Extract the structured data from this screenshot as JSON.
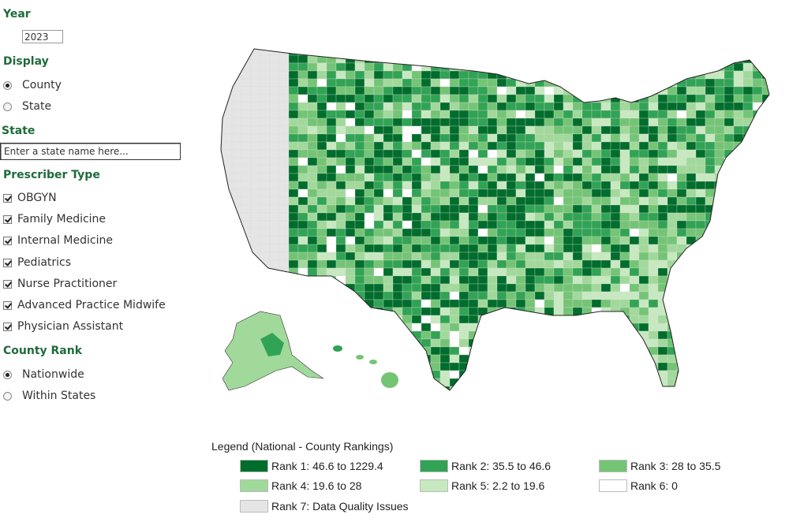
{
  "sidebar": {
    "year": {
      "title": "Year",
      "value": "2023"
    },
    "display": {
      "title": "Display",
      "options": [
        {
          "label": "County",
          "selected": true
        },
        {
          "label": "State",
          "selected": false
        }
      ]
    },
    "state": {
      "title": "State",
      "placeholder": "Enter a state name here..."
    },
    "prescriber": {
      "title": "Prescriber Type",
      "options": [
        {
          "label": "OBGYN",
          "checked": true
        },
        {
          "label": "Family Medicine",
          "checked": true
        },
        {
          "label": "Internal Medicine",
          "checked": true
        },
        {
          "label": "Pediatrics",
          "checked": true
        },
        {
          "label": "Nurse Practitioner",
          "checked": true
        },
        {
          "label": "Advanced Practice Midwife",
          "checked": true
        },
        {
          "label": "Physician Assistant",
          "checked": true
        }
      ]
    },
    "county_rank": {
      "title": "County Rank",
      "options": [
        {
          "label": "Nationwide",
          "selected": true
        },
        {
          "label": "Within States",
          "selected": false
        }
      ]
    }
  },
  "legend": {
    "title": "Legend (National - County Rankings)",
    "items": [
      {
        "label": "Rank 1: 46.6 to 1229.4",
        "color": "#006d2c"
      },
      {
        "label": "Rank 2: 35.5 to 46.6",
        "color": "#31a354"
      },
      {
        "label": "Rank 3: 28 to 35.5",
        "color": "#74c476"
      },
      {
        "label": "Rank 4: 19.6 to 28",
        "color": "#a1d99b"
      },
      {
        "label": "Rank 5: 2.2 to 19.6",
        "color": "#c7e9c0"
      },
      {
        "label": "Rank 6: 0",
        "color": "#ffffff"
      },
      {
        "label": "Rank 7: Data Quality Issues",
        "color": "#e5e5e5"
      }
    ]
  }
}
